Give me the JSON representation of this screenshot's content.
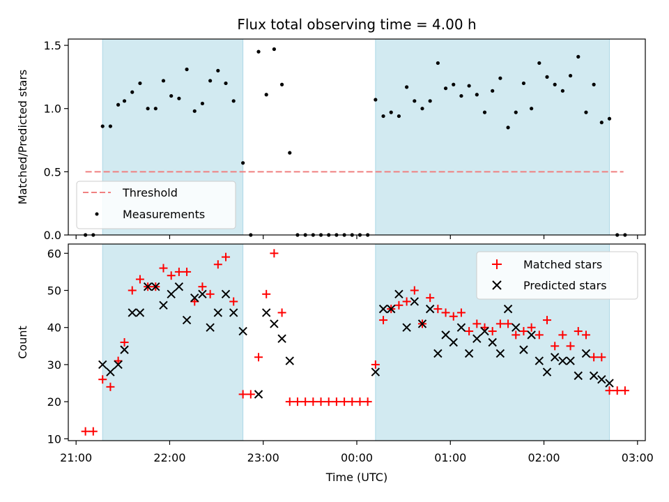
{
  "title": "Flux total observing time = 4.00 h",
  "colors": {
    "threshold": "#f08080",
    "measurements": "#000000",
    "matched": "#ff0000",
    "predicted": "#000000",
    "shade": "#add8e6"
  },
  "chart_data": [
    {
      "type": "scatter",
      "panel": "top",
      "ylabel": "Matched/Predicted stars",
      "ylim": [
        0,
        1.55
      ],
      "yticks": [
        "0.0",
        "0.5",
        "1.0",
        "1.5"
      ],
      "legend": {
        "placement": "lower-left",
        "entries": [
          "Threshold",
          "Measurements"
        ]
      },
      "threshold": {
        "name": "Threshold",
        "y": 0.5,
        "x_start": "21:06",
        "x_end": "02:51"
      },
      "shaded_spans": [
        {
          "start": "21:17",
          "end": "22:47"
        },
        {
          "start": "00:12",
          "end": "02:42"
        }
      ],
      "series": [
        {
          "name": "Measurements",
          "x": [
            "21:06",
            "21:11",
            "21:17",
            "21:22",
            "21:27",
            "21:31",
            "21:36",
            "21:41",
            "21:46",
            "21:51",
            "21:56",
            "22:01",
            "22:06",
            "22:11",
            "22:16",
            "22:21",
            "22:26",
            "22:31",
            "22:36",
            "22:41",
            "22:47",
            "22:52",
            "22:57",
            "23:02",
            "23:07",
            "23:12",
            "23:17",
            "23:22",
            "23:27",
            "23:32",
            "23:37",
            "23:42",
            "23:47",
            "23:52",
            "23:57",
            "00:02",
            "00:07",
            "00:12",
            "00:17",
            "00:22",
            "00:27",
            "00:32",
            "00:37",
            "00:42",
            "00:47",
            "00:52",
            "00:57",
            "01:02",
            "01:07",
            "01:12",
            "01:17",
            "01:22",
            "01:27",
            "01:32",
            "01:37",
            "01:42",
            "01:47",
            "01:52",
            "01:57",
            "02:02",
            "02:07",
            "02:12",
            "02:17",
            "02:22",
            "02:27",
            "02:32",
            "02:37",
            "02:42",
            "02:47",
            "02:52"
          ],
          "y": [
            0,
            0,
            0.86,
            0.86,
            1.03,
            1.06,
            1.13,
            1.2,
            1.0,
            1.0,
            1.22,
            1.1,
            1.08,
            1.31,
            0.98,
            1.04,
            1.22,
            1.3,
            1.2,
            1.06,
            0.57,
            0,
            1.45,
            1.11,
            1.47,
            1.19,
            0.65,
            0,
            0,
            0,
            0,
            0,
            0,
            0,
            0,
            0,
            0,
            1.07,
            0.94,
            0.97,
            0.94,
            1.17,
            1.06,
            1.0,
            1.06,
            1.36,
            1.16,
            1.19,
            1.1,
            1.18,
            1.11,
            0.97,
            1.14,
            1.24,
            0.85,
            0.97,
            1.2,
            1.0,
            1.36,
            1.25,
            1.19,
            1.14,
            1.26,
            1.41,
            0.97,
            1.19,
            0.89,
            0.92,
            0,
            0
          ]
        }
      ]
    },
    {
      "type": "scatter",
      "panel": "bottom",
      "xlabel": "Time (UTC)",
      "ylabel": "Count",
      "ylim": [
        9.5,
        62.5
      ],
      "yticks": [
        "10",
        "20",
        "30",
        "40",
        "50",
        "60"
      ],
      "xlim": [
        "20:55",
        "03:05"
      ],
      "xticks": [
        "21:00",
        "22:00",
        "23:00",
        "00:00",
        "01:00",
        "02:00",
        "03:00"
      ],
      "legend": {
        "placement": "upper-right",
        "entries": [
          "Matched stars",
          "Predicted stars"
        ]
      },
      "shaded_spans": [
        {
          "start": "21:17",
          "end": "22:47"
        },
        {
          "start": "00:12",
          "end": "02:42"
        }
      ],
      "series": [
        {
          "name": "Matched stars",
          "marker": "plus",
          "x": [
            "21:06",
            "21:11",
            "21:17",
            "21:22",
            "21:27",
            "21:31",
            "21:36",
            "21:41",
            "21:46",
            "21:51",
            "21:56",
            "22:01",
            "22:06",
            "22:11",
            "22:16",
            "22:21",
            "22:26",
            "22:31",
            "22:36",
            "22:41",
            "22:47",
            "22:52",
            "22:57",
            "23:02",
            "23:07",
            "23:12",
            "23:17",
            "23:22",
            "23:27",
            "23:32",
            "23:37",
            "23:42",
            "23:47",
            "23:52",
            "23:57",
            "00:02",
            "00:07",
            "00:12",
            "00:17",
            "00:22",
            "00:27",
            "00:32",
            "00:37",
            "00:42",
            "00:47",
            "00:52",
            "00:57",
            "01:02",
            "01:07",
            "01:12",
            "01:17",
            "01:22",
            "01:27",
            "01:32",
            "01:37",
            "01:42",
            "01:47",
            "01:52",
            "01:57",
            "02:02",
            "02:07",
            "02:12",
            "02:17",
            "02:22",
            "02:27",
            "02:32",
            "02:37",
            "02:42",
            "02:47",
            "02:52"
          ],
          "y": [
            12,
            12,
            26,
            24,
            31,
            36,
            50,
            53,
            51,
            51,
            56,
            54,
            55,
            55,
            47,
            51,
            49,
            57,
            59,
            47,
            22,
            22,
            32,
            49,
            60,
            44,
            20,
            20,
            20,
            20,
            20,
            20,
            20,
            20,
            20,
            20,
            20,
            30,
            42,
            45,
            46,
            47,
            50,
            41,
            48,
            45,
            44,
            43,
            44,
            39,
            41,
            40,
            39,
            41,
            41,
            38,
            39,
            40,
            38,
            42,
            35,
            38,
            35,
            39,
            38,
            32,
            32,
            23,
            23,
            23
          ]
        },
        {
          "name": "Predicted stars",
          "marker": "x",
          "x": [
            "21:17",
            "21:22",
            "21:27",
            "21:31",
            "21:36",
            "21:41",
            "21:46",
            "21:51",
            "21:56",
            "22:01",
            "22:06",
            "22:11",
            "22:16",
            "22:21",
            "22:26",
            "22:31",
            "22:36",
            "22:41",
            "22:47",
            "22:57",
            "23:02",
            "23:07",
            "23:12",
            "23:17",
            "00:12",
            "00:17",
            "00:22",
            "00:27",
            "00:32",
            "00:37",
            "00:42",
            "00:47",
            "00:52",
            "00:57",
            "01:02",
            "01:07",
            "01:12",
            "01:17",
            "01:22",
            "01:27",
            "01:32",
            "01:37",
            "01:42",
            "01:47",
            "01:52",
            "01:57",
            "02:02",
            "02:07",
            "02:12",
            "02:17",
            "02:22",
            "02:27",
            "02:32",
            "02:37",
            "02:42"
          ],
          "y": [
            30,
            28,
            30,
            34,
            44,
            44,
            51,
            51,
            46,
            49,
            51,
            42,
            48,
            49,
            40,
            44,
            49,
            44,
            39,
            22,
            44,
            41,
            37,
            31,
            28,
            45,
            45,
            49,
            40,
            47,
            41,
            45,
            33,
            38,
            36,
            40,
            33,
            37,
            39,
            36,
            33,
            45,
            40,
            34,
            38,
            31,
            28,
            32,
            31,
            31,
            27,
            33,
            27,
            26,
            25
          ]
        }
      ]
    }
  ]
}
